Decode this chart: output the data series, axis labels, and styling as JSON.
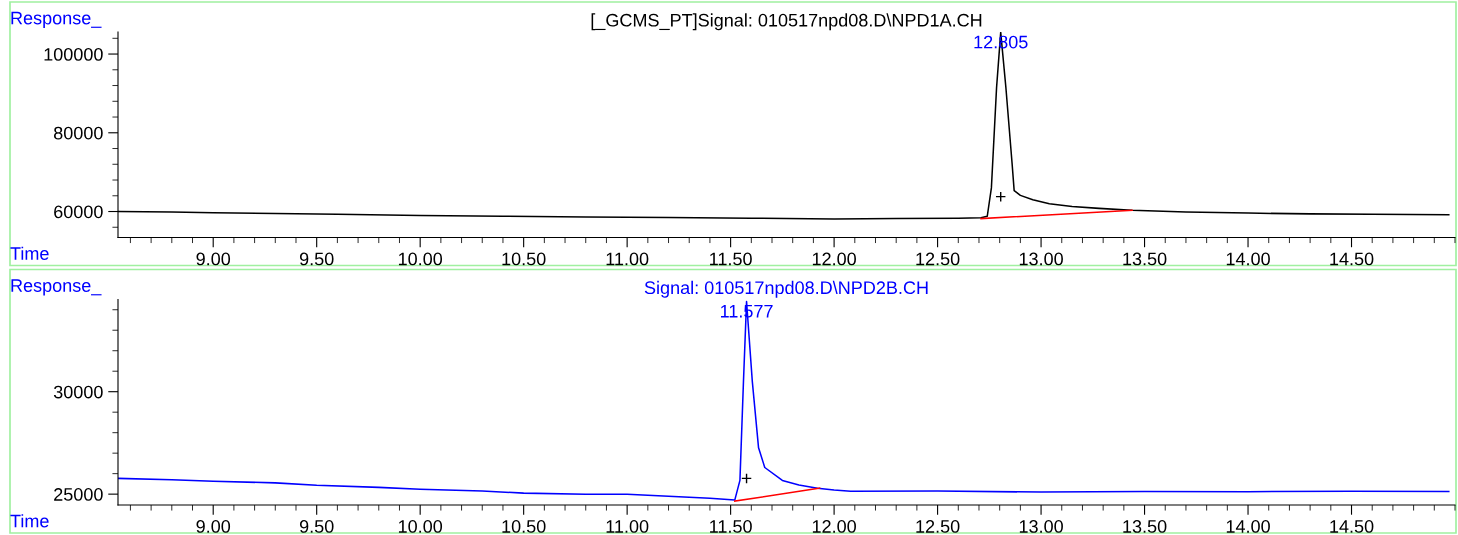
{
  "chart_data": [
    {
      "type": "line",
      "title": "[_GCMS_PT]Signal: 010517npd08.D\\NPD1A.CH",
      "xlabel": "Time",
      "ylabel": "Response_",
      "xlim": [
        8.54,
        15.0
      ],
      "ylim": [
        53400,
        105600
      ],
      "xticks": [
        {
          "value": 9,
          "label": "9.00"
        },
        {
          "value": 9.5,
          "label": "9.50"
        },
        {
          "value": 10,
          "label": "10.00"
        },
        {
          "value": 10.5,
          "label": "10.50"
        },
        {
          "value": 11,
          "label": "11.00"
        },
        {
          "value": 11.5,
          "label": "11.50"
        },
        {
          "value": 12,
          "label": "12.00"
        },
        {
          "value": 12.5,
          "label": "12.50"
        },
        {
          "value": 13,
          "label": "13.00"
        },
        {
          "value": 13.5,
          "label": "13.50"
        },
        {
          "value": 14,
          "label": "14.00"
        },
        {
          "value": 14.5,
          "label": "14.50"
        }
      ],
      "yticks": [
        60000,
        80000,
        100000
      ],
      "grid": false,
      "legend": false,
      "marker": "none",
      "series": [
        {
          "color": "#000000",
          "x": [
            8.54,
            8.8,
            9.0,
            9.3,
            9.6,
            10.0,
            10.4,
            10.8,
            11.2,
            11.6,
            12.0,
            12.3,
            12.6,
            12.71,
            12.74,
            12.76,
            12.785,
            12.805,
            12.83,
            12.86,
            12.87,
            12.9,
            12.96,
            13.04,
            13.15,
            13.28,
            13.44,
            13.7,
            14.0,
            14.3,
            14.6,
            14.97
          ],
          "values": [
            60000,
            59900,
            59700,
            59500,
            59300,
            59000,
            58800,
            58600,
            58500,
            58300,
            58100,
            58200,
            58300,
            58400,
            58800,
            66000,
            91500,
            105500,
            91500,
            72200,
            65300,
            64100,
            63000,
            62000,
            61300,
            60800,
            60300,
            59900,
            59600,
            59400,
            59300,
            59200
          ]
        },
        {
          "type": "line",
          "color": "#ff0000",
          "x": [
            12.71,
            13.44
          ],
          "values": [
            58200,
            60300
          ]
        }
      ],
      "annotations": [
        {
          "text": "12.805",
          "x": 12.805,
          "y": 105500
        },
        "+"
      ]
    },
    {
      "type": "line",
      "title": "Signal: 010517npd08.D\\NPD2B.CH",
      "xlabel": "Time",
      "ylabel": "Response_",
      "xlim": [
        8.54,
        15.0
      ],
      "ylim": [
        24470,
        34500
      ],
      "xticks": [
        {
          "value": 9,
          "label": "9.00"
        },
        {
          "value": 9.5,
          "label": "9.50"
        },
        {
          "value": 10,
          "label": "10.00"
        },
        {
          "value": 10.5,
          "label": "10.50"
        },
        {
          "value": 11,
          "label": "11.00"
        },
        {
          "value": 11.5,
          "label": "11.50"
        },
        {
          "value": 12,
          "label": "12.00"
        },
        {
          "value": 12.5,
          "label": "12.50"
        },
        {
          "value": 13,
          "label": "13.00"
        },
        {
          "value": 13.5,
          "label": "13.50"
        },
        {
          "value": 14,
          "label": "14.00"
        },
        {
          "value": 14.5,
          "label": "14.50"
        }
      ],
      "yticks": [
        25000,
        30000
      ],
      "grid": false,
      "legend": false,
      "marker": "none",
      "series": [
        {
          "color": "#0000ff",
          "x": [
            8.54,
            8.8,
            9.0,
            9.3,
            9.5,
            9.8,
            10.0,
            10.3,
            10.5,
            10.8,
            11.0,
            11.2,
            11.4,
            11.52,
            11.545,
            11.562,
            11.577,
            11.605,
            11.635,
            11.665,
            11.75,
            11.83,
            11.92,
            12.0,
            12.08,
            12.5,
            13.0,
            13.5,
            14.0,
            14.5,
            14.97
          ],
          "values": [
            25770,
            25700,
            25630,
            25550,
            25430,
            25330,
            25240,
            25150,
            25050,
            25000,
            25000,
            24900,
            24800,
            24710,
            25670,
            30480,
            34400,
            30480,
            27260,
            26300,
            25670,
            25450,
            25290,
            25200,
            25140,
            25150,
            25100,
            25130,
            25120,
            25140,
            25130
          ]
        },
        {
          "type": "line",
          "color": "#ff0000",
          "x": [
            11.52,
            11.93
          ],
          "values": [
            24660,
            25290
          ]
        }
      ],
      "annotations": [
        {
          "text": "11.577",
          "x": 11.577,
          "y": 34400
        },
        "+"
      ]
    }
  ]
}
